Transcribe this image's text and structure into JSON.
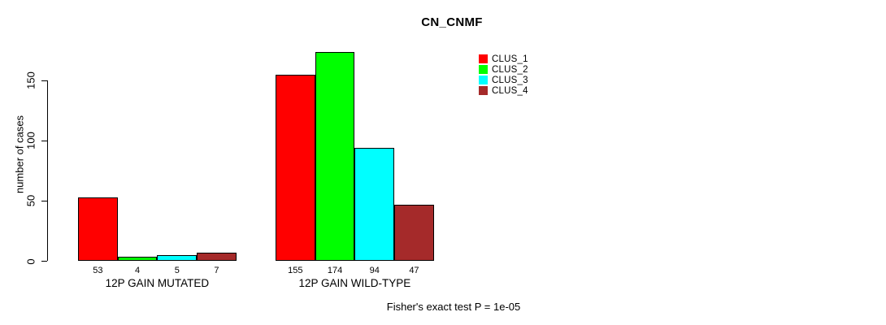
{
  "chart_data": {
    "type": "bar",
    "title": "CN_CNMF",
    "ylabel": "number of cases",
    "xlabel": "",
    "ylim": [
      0,
      174
    ],
    "yticks": [
      0,
      50,
      100,
      150
    ],
    "grid": false,
    "legend_position": "top-right",
    "categories": [
      "12P GAIN MUTATED",
      "12P GAIN WILD-TYPE"
    ],
    "series": [
      {
        "name": "CLUS_1",
        "color": "#ff0000",
        "values": [
          53,
          155
        ]
      },
      {
        "name": "CLUS_2",
        "color": "#00ff00",
        "values": [
          4,
          174
        ]
      },
      {
        "name": "CLUS_3",
        "color": "#00ffff",
        "values": [
          5,
          94
        ]
      },
      {
        "name": "CLUS_4",
        "color": "#a52a2a",
        "values": [
          7,
          47
        ]
      }
    ],
    "bar_value_labels": [
      [
        53,
        4,
        5,
        7
      ],
      [
        155,
        174,
        94,
        47
      ]
    ],
    "annotation": "Fisher's exact test P = 1e-05"
  },
  "colors": {
    "axis": "#000000",
    "text": "#000000",
    "background": "#ffffff"
  }
}
